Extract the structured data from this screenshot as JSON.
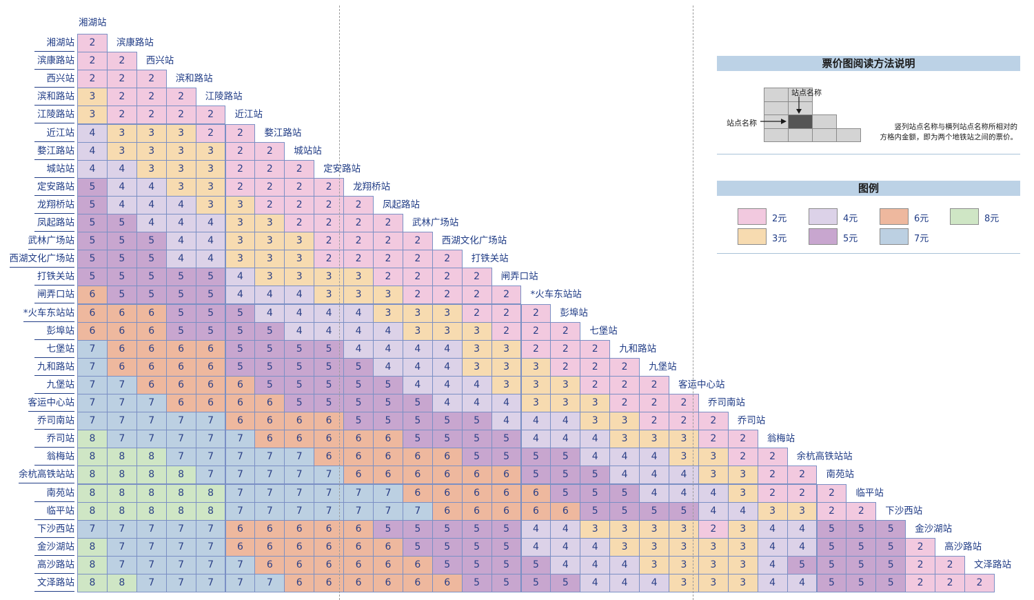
{
  "title_station": "湘湖站",
  "stations": [
    "湘湖站",
    "滨康路站",
    "西兴站",
    "滨和路站",
    "江陵路站",
    "近江站",
    "婺江路站",
    "城站站",
    "定安路站",
    "龙翔桥站",
    "凤起路站",
    "武林广场站",
    "西湖文化广场站",
    "打铁关站",
    "闸弄口站",
    "*火车东站站",
    "彭埠站",
    "七堡站",
    "九和路站",
    "九堡站",
    "客运中心站",
    "乔司南站",
    "乔司站",
    "翁梅站",
    "余杭高铁站站",
    "南苑站",
    "临平站",
    "下沙西站",
    "金沙湖站",
    "高沙路站",
    "文泽路站"
  ],
  "fares": [
    [
      2
    ],
    [
      2,
      2
    ],
    [
      2,
      2,
      2
    ],
    [
      3,
      2,
      2,
      2
    ],
    [
      3,
      2,
      2,
      2,
      2
    ],
    [
      4,
      3,
      3,
      3,
      2,
      2
    ],
    [
      4,
      3,
      3,
      3,
      3,
      2,
      2
    ],
    [
      4,
      4,
      3,
      3,
      3,
      2,
      2,
      2
    ],
    [
      5,
      4,
      4,
      3,
      3,
      2,
      2,
      2,
      2
    ],
    [
      5,
      4,
      4,
      4,
      3,
      3,
      2,
      2,
      2,
      2
    ],
    [
      5,
      5,
      4,
      4,
      4,
      3,
      3,
      2,
      2,
      2,
      2
    ],
    [
      5,
      5,
      5,
      4,
      4,
      3,
      3,
      3,
      2,
      2,
      2,
      2
    ],
    [
      5,
      5,
      5,
      4,
      4,
      3,
      3,
      3,
      2,
      2,
      2,
      2,
      2
    ],
    [
      5,
      5,
      5,
      5,
      5,
      4,
      3,
      3,
      3,
      3,
      2,
      2,
      2,
      2
    ],
    [
      6,
      5,
      5,
      5,
      5,
      4,
      4,
      4,
      3,
      3,
      3,
      2,
      2,
      2,
      2
    ],
    [
      6,
      6,
      6,
      5,
      5,
      5,
      4,
      4,
      4,
      4,
      3,
      3,
      3,
      2,
      2,
      2
    ],
    [
      6,
      6,
      6,
      5,
      5,
      5,
      5,
      4,
      4,
      4,
      4,
      3,
      3,
      3,
      2,
      2,
      2
    ],
    [
      7,
      6,
      6,
      6,
      6,
      5,
      5,
      5,
      5,
      4,
      4,
      4,
      4,
      3,
      3,
      2,
      2,
      2
    ],
    [
      7,
      6,
      6,
      6,
      6,
      5,
      5,
      5,
      5,
      5,
      4,
      4,
      4,
      3,
      3,
      3,
      2,
      2,
      2
    ],
    [
      7,
      7,
      6,
      6,
      6,
      6,
      5,
      5,
      5,
      5,
      5,
      4,
      4,
      4,
      3,
      3,
      3,
      2,
      2,
      2
    ],
    [
      7,
      7,
      7,
      6,
      6,
      6,
      6,
      5,
      5,
      5,
      5,
      5,
      4,
      4,
      4,
      3,
      3,
      3,
      2,
      2,
      2
    ],
    [
      7,
      7,
      7,
      7,
      7,
      6,
      6,
      6,
      6,
      5,
      5,
      5,
      5,
      5,
      4,
      4,
      4,
      3,
      3,
      2,
      2,
      2
    ],
    [
      8,
      7,
      7,
      7,
      7,
      7,
      6,
      6,
      6,
      6,
      6,
      5,
      5,
      5,
      5,
      4,
      4,
      4,
      3,
      3,
      3,
      2,
      2
    ],
    [
      8,
      8,
      8,
      7,
      7,
      7,
      7,
      7,
      6,
      6,
      6,
      6,
      6,
      5,
      5,
      5,
      5,
      4,
      4,
      4,
      3,
      3,
      2,
      2
    ],
    [
      8,
      8,
      8,
      8,
      7,
      7,
      7,
      7,
      7,
      6,
      6,
      6,
      6,
      6,
      6,
      5,
      5,
      5,
      4,
      4,
      4,
      3,
      3,
      2,
      2
    ],
    [
      8,
      8,
      8,
      8,
      8,
      7,
      7,
      7,
      7,
      7,
      7,
      6,
      6,
      6,
      6,
      6,
      5,
      5,
      5,
      4,
      4,
      4,
      3,
      2,
      2,
      2
    ],
    [
      8,
      8,
      8,
      8,
      8,
      7,
      7,
      7,
      7,
      7,
      7,
      7,
      6,
      6,
      6,
      6,
      6,
      5,
      5,
      5,
      5,
      4,
      4,
      3,
      3,
      2,
      2
    ],
    [
      7,
      7,
      7,
      7,
      7,
      6,
      6,
      6,
      6,
      6,
      5,
      5,
      5,
      5,
      5,
      4,
      4,
      3,
      3,
      3,
      3,
      2,
      3,
      4,
      4,
      5,
      5,
      5
    ],
    [
      8,
      7,
      7,
      7,
      7,
      6,
      6,
      6,
      6,
      6,
      6,
      5,
      5,
      5,
      5,
      4,
      4,
      4,
      3,
      3,
      3,
      3,
      3,
      4,
      4,
      5,
      5,
      5,
      2
    ],
    [
      8,
      7,
      7,
      7,
      7,
      7,
      6,
      6,
      6,
      6,
      6,
      6,
      5,
      5,
      5,
      5,
      4,
      4,
      4,
      3,
      3,
      3,
      3,
      4,
      5,
      5,
      5,
      5,
      2,
      2
    ],
    [
      8,
      8,
      7,
      7,
      7,
      7,
      7,
      6,
      6,
      6,
      6,
      6,
      6,
      5,
      5,
      5,
      5,
      4,
      4,
      4,
      3,
      3,
      3,
      4,
      4,
      5,
      5,
      5,
      2,
      2,
      2
    ]
  ],
  "colors": {
    "2": "#f2c9df",
    "3": "#f7dbb0",
    "4": "#dcd2e8",
    "5": "#c8a6cf",
    "6": "#eeb89e",
    "7": "#bcd0e2",
    "8": "#cfe6c5"
  },
  "panel": {
    "how_to_title": "票价图阅读方法说明",
    "station_name_top": "站点名称",
    "station_name_left": "站点名称",
    "note_line1": "竖列站点名称与横列站点名称所相对的",
    "note_line2": "方格内金额，即为两个地铁站之间的票价。",
    "legend_title": "图例",
    "legend": [
      {
        "fare": "2",
        "label": "2元"
      },
      {
        "fare": "4",
        "label": "4元"
      },
      {
        "fare": "6",
        "label": "6元"
      },
      {
        "fare": "8",
        "label": "8元"
      },
      {
        "fare": "3",
        "label": "3元"
      },
      {
        "fare": "5",
        "label": "5元"
      },
      {
        "fare": "7",
        "label": "7元"
      }
    ]
  }
}
